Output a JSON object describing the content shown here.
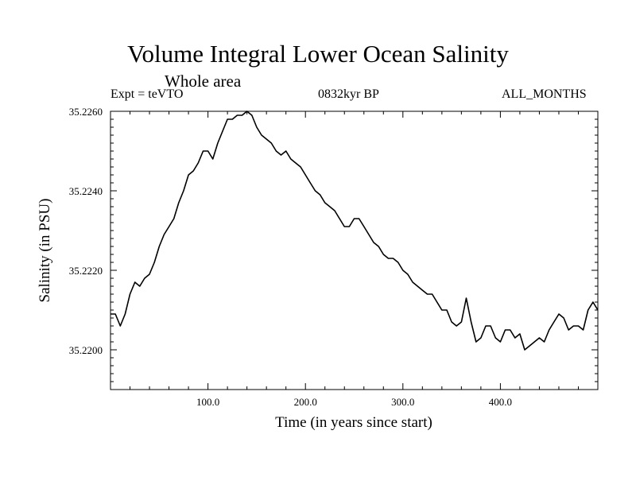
{
  "chart_data": {
    "type": "line",
    "title": "Volume Integral Lower Ocean Salinity",
    "subtitle": "Whole area",
    "experiment": "Expt = teVTO",
    "period": "0832kyr BP",
    "months": "ALL_MONTHS",
    "xlabel": "Time (in years since start)",
    "ylabel": "Salinity (in PSU)",
    "xlim": [
      0,
      500
    ],
    "ylim": [
      35.219,
      35.226
    ],
    "x_ticks": [
      100,
      200,
      300,
      400
    ],
    "x_tick_labels": [
      "100.0",
      "200.0",
      "300.0",
      "400.0"
    ],
    "y_ticks": [
      35.22,
      35.222,
      35.224,
      35.226
    ],
    "y_tick_labels": [
      "35.2200",
      "35.2220",
      "35.2240",
      "35.2260"
    ],
    "grid": false,
    "series": [
      {
        "name": "Salinity",
        "x": [
          0,
          5,
          10,
          15,
          20,
          25,
          30,
          35,
          40,
          45,
          50,
          55,
          60,
          65,
          70,
          75,
          80,
          85,
          90,
          95,
          100,
          105,
          110,
          115,
          120,
          125,
          130,
          135,
          140,
          145,
          150,
          155,
          160,
          165,
          170,
          175,
          180,
          185,
          190,
          195,
          200,
          205,
          210,
          215,
          220,
          225,
          230,
          235,
          240,
          245,
          250,
          255,
          260,
          265,
          270,
          275,
          280,
          285,
          290,
          295,
          300,
          305,
          310,
          315,
          320,
          325,
          330,
          335,
          340,
          345,
          350,
          355,
          360,
          365,
          370,
          375,
          380,
          385,
          390,
          395,
          400,
          405,
          410,
          415,
          420,
          425,
          430,
          435,
          440,
          445,
          450,
          455,
          460,
          465,
          470,
          475,
          480,
          485,
          490,
          495,
          500
        ],
        "values": [
          35.2209,
          35.2209,
          35.2206,
          35.2209,
          35.2214,
          35.2217,
          35.2216,
          35.2218,
          35.2219,
          35.2222,
          35.2226,
          35.2229,
          35.2231,
          35.2233,
          35.2237,
          35.224,
          35.2244,
          35.2245,
          35.2247,
          35.225,
          35.225,
          35.2248,
          35.2252,
          35.2255,
          35.2258,
          35.2258,
          35.2259,
          35.2259,
          35.226,
          35.2259,
          35.2256,
          35.2254,
          35.2253,
          35.2252,
          35.225,
          35.2249,
          35.225,
          35.2248,
          35.2247,
          35.2246,
          35.2244,
          35.2242,
          35.224,
          35.2239,
          35.2237,
          35.2236,
          35.2235,
          35.2233,
          35.2231,
          35.2231,
          35.2233,
          35.2233,
          35.2231,
          35.2229,
          35.2227,
          35.2226,
          35.2224,
          35.2223,
          35.2223,
          35.2222,
          35.222,
          35.2219,
          35.2217,
          35.2216,
          35.2215,
          35.2214,
          35.2214,
          35.2212,
          35.221,
          35.221,
          35.2207,
          35.2206,
          35.2207,
          35.2213,
          35.2207,
          35.2202,
          35.2203,
          35.2206,
          35.2206,
          35.2203,
          35.2202,
          35.2205,
          35.2205,
          35.2203,
          35.2204,
          35.22,
          35.2201,
          35.2202,
          35.2203,
          35.2202,
          35.2205,
          35.2207,
          35.2209,
          35.2208,
          35.2205,
          35.2206,
          35.2206,
          35.2205,
          35.221,
          35.2212,
          35.221
        ]
      }
    ]
  }
}
